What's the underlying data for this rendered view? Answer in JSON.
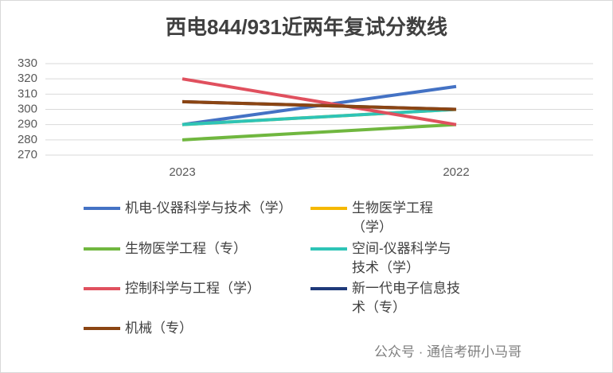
{
  "chart_data": {
    "type": "line",
    "title": "西电844/931近两年复试分数线",
    "categories": [
      "2023",
      "2022"
    ],
    "series": [
      {
        "name": "机电-仪器科学与技术（学）",
        "color": "#4472c4",
        "values": [
          290,
          315
        ]
      },
      {
        "name": "生物医学工程（学）",
        "color": "#f5b800",
        "values": [
          290,
          300
        ]
      },
      {
        "name": "生物医学工程（专）",
        "color": "#70b73f",
        "values": [
          280,
          290
        ]
      },
      {
        "name": "空间-仪器科学与技术（学）",
        "color": "#2ec4b6",
        "values": [
          290,
          300
        ]
      },
      {
        "name": "控制科学与工程（学）",
        "color": "#e0505e",
        "values": [
          320,
          290
        ]
      },
      {
        "name": "新一代电子信息技术（专）",
        "color": "#1f3a7a",
        "values": [
          305,
          300
        ]
      },
      {
        "name": "机械（专）",
        "color": "#8b4513",
        "values": [
          305,
          300
        ]
      }
    ],
    "ylim": [
      270,
      330
    ],
    "yticks": [
      270,
      280,
      290,
      300,
      310,
      320,
      330
    ],
    "grid": true,
    "watermark": "公众号 · 通信考研小马哥"
  }
}
